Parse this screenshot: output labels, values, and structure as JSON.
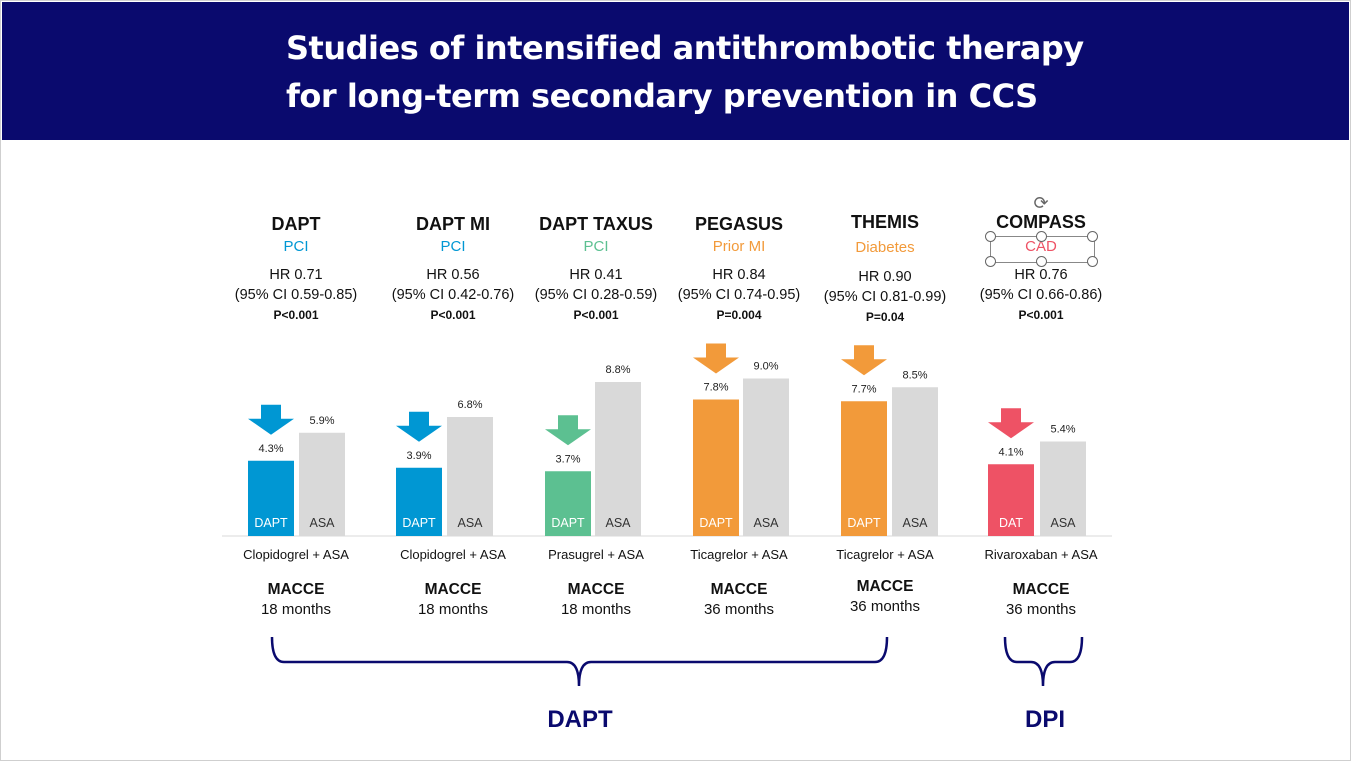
{
  "title": {
    "line1": "Studies of intensified antithrombotic therapy",
    "line2": "for long-term secondary prevention in CCS"
  },
  "colors": {
    "banner": "#0a0a6e",
    "pci_blue": "#0097d3",
    "green": "#5cc091",
    "orange": "#f29a3a",
    "red": "#ee5265",
    "grey": "#d9d9d9",
    "navy_text": "#0a0a6e"
  },
  "studies": [
    {
      "name": "DAPT",
      "population": "PCI",
      "hr": "HR 0.71",
      "ci": "(95% CI 0.59-0.85)",
      "p": "P<0.001",
      "regimen": "Clopidogrel + ASA",
      "endpoint": "MACCE",
      "duration": "18 months"
    },
    {
      "name": "DAPT MI",
      "population": "PCI",
      "hr": "HR 0.56",
      "ci": "(95% CI 0.42-0.76)",
      "p": "P<0.001",
      "regimen": "Clopidogrel + ASA",
      "endpoint": "MACCE",
      "duration": "18 months"
    },
    {
      "name": "DAPT TAXUS",
      "population": "PCI",
      "hr": "HR 0.41",
      "ci": "(95% CI 0.28-0.59)",
      "p": "P<0.001",
      "regimen": "Prasugrel + ASA",
      "endpoint": "MACCE",
      "duration": "18 months"
    },
    {
      "name": "PEGASUS",
      "population": "Prior MI",
      "hr": "HR 0.84",
      "ci": "(95% CI 0.74-0.95)",
      "p": "P=0.004",
      "regimen": "Ticagrelor + ASA",
      "endpoint": "MACCE",
      "duration": "36 months"
    },
    {
      "name": "THEMIS",
      "population": "Diabetes",
      "hr": "HR 0.90",
      "ci": "(95% CI 0.81-0.99)",
      "p": "P=0.04",
      "regimen": "Ticagrelor + ASA",
      "endpoint": "MACCE",
      "duration": "36 months"
    },
    {
      "name": "COMPASS",
      "population": "CAD",
      "hr": "HR 0.76",
      "ci": "(95% CI 0.66-0.86)",
      "p": "P<0.001",
      "regimen": "Rivaroxaban + ASA",
      "endpoint": "MACCE",
      "duration": "36 months"
    }
  ],
  "chart_data": {
    "type": "bar",
    "unit": "%",
    "grid": false,
    "groups": [
      {
        "treatment_label": "DAPT",
        "treatment": 4.3,
        "treatment_text": "4.3%",
        "control_label": "ASA",
        "control": 5.9,
        "control_text": "5.9%",
        "color": "#0097d3"
      },
      {
        "treatment_label": "DAPT",
        "treatment": 3.9,
        "treatment_text": "3.9%",
        "control_label": "ASA",
        "control": 6.8,
        "control_text": "6.8%",
        "color": "#0097d3"
      },
      {
        "treatment_label": "DAPT",
        "treatment": 3.7,
        "treatment_text": "3.7%",
        "control_label": "ASA",
        "control": 8.8,
        "control_text": "8.8%",
        "color": "#5cc091"
      },
      {
        "treatment_label": "DAPT",
        "treatment": 7.8,
        "treatment_text": "7.8%",
        "control_label": "ASA",
        "control": 9.0,
        "control_text": "9.0%",
        "color": "#f29a3a"
      },
      {
        "treatment_label": "DAPT",
        "treatment": 7.7,
        "treatment_text": "7.7%",
        "control_label": "ASA",
        "control": 8.5,
        "control_text": "8.5%",
        "color": "#f29a3a"
      },
      {
        "treatment_label": "DAT",
        "treatment": 4.1,
        "treatment_text": "4.1%",
        "control_label": "ASA",
        "control": 5.4,
        "control_text": "5.4%",
        "color": "#ee5265"
      }
    ]
  },
  "groups": {
    "dapt_label": "DAPT",
    "dpi_label": "DPI"
  }
}
